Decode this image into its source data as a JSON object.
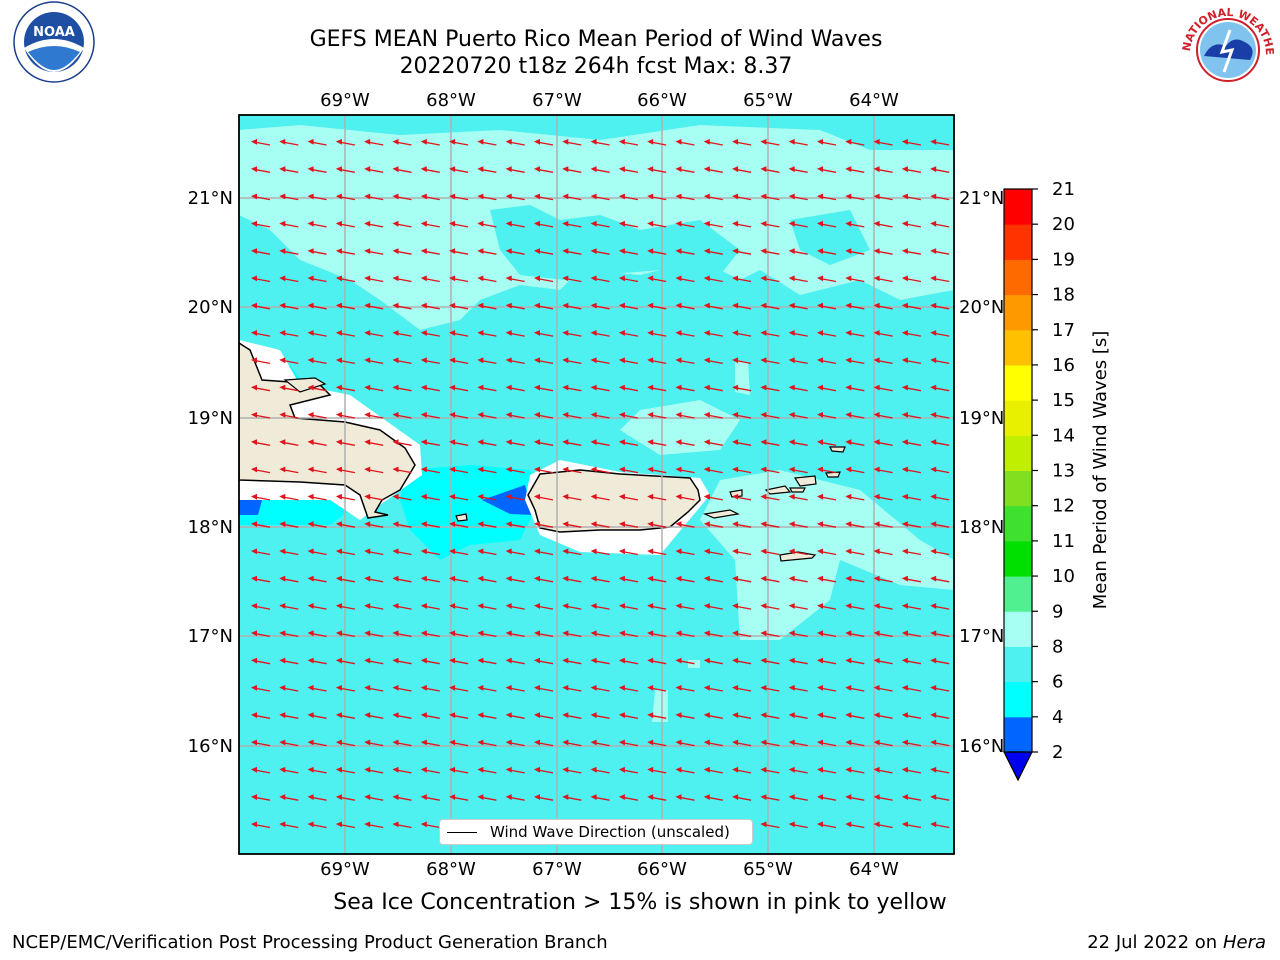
{
  "header": {
    "title_line1": "GEFS MEAN Puerto Rico Mean Period of Wind Waves",
    "title_line2": "20220720 t18z 264h fcst   Max: 8.37"
  },
  "map": {
    "lon_labels": [
      "69°W",
      "68°W",
      "67°W",
      "66°W",
      "65°W",
      "64°W"
    ],
    "lat_labels": [
      "21°N",
      "20°N",
      "19°N",
      "18°N",
      "17°N",
      "16°N"
    ],
    "legend_label": "Wind Wave Direction (unscaled)",
    "arrow_color": "#e0141c",
    "land_color": "#efebd8"
  },
  "colorbar": {
    "label": "Mean Period of Wind Waves [s]",
    "ticks": [
      "2",
      "4",
      "6",
      "8",
      "9",
      "10",
      "11",
      "12",
      "13",
      "14",
      "15",
      "16",
      "17",
      "18",
      "19",
      "20",
      "21"
    ],
    "colors": [
      "#0066ff",
      "#00ffff",
      "#4ef0f0",
      "#a6fff2",
      "#50f090",
      "#00e000",
      "#40e030",
      "#80e020",
      "#c0f000",
      "#e8f000",
      "#ffff00",
      "#ffc000",
      "#ff9900",
      "#ff6a00",
      "#ff3300",
      "#ff0000"
    ],
    "under_color": "#0000ee"
  },
  "footer": {
    "note": "Sea Ice Concentration > 15% is shown in pink to yellow",
    "left": "NCEP/EMC/Verification Post Processing Product Generation Branch",
    "date": "22 Jul 2022 on ",
    "host": "Hera"
  },
  "logos": {
    "noaa_text": "NOAA",
    "nws_text": "NATIONAL WEATHER SERVICE"
  }
}
